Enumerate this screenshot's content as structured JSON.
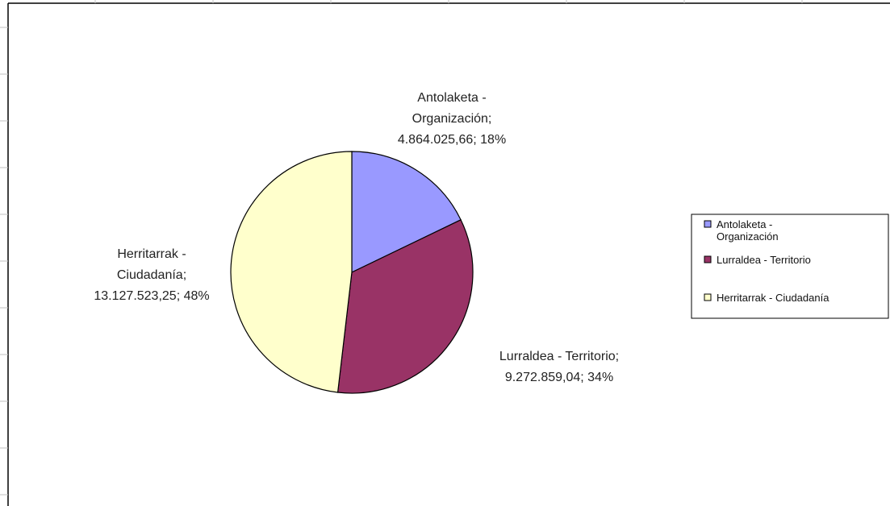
{
  "chart_data": {
    "type": "pie",
    "title": "",
    "legend_position": "right",
    "slices": [
      {
        "name": "Antolaketa - Organización",
        "value": 4864025.66,
        "percent": 18,
        "color": "#9999ff",
        "label_lines": [
          "Antolaketa -",
          "Organización;",
          "4.864.025,66; 18%"
        ],
        "legend_lines": [
          "Antolaketa -",
          "Organización"
        ]
      },
      {
        "name": "Lurraldea - Territorio",
        "value": 9272859.04,
        "percent": 34,
        "color": "#993366",
        "label_lines": [
          "Lurraldea - Territorio;",
          "9.272.859,04; 34%"
        ],
        "legend_lines": [
          "Lurraldea - Territorio"
        ]
      },
      {
        "name": "Herritarrak - Ciudadanía",
        "value": 13127523.25,
        "percent": 48,
        "color": "#ffffcc",
        "label_lines": [
          "Herritarrak -",
          "Ciudadanía;",
          "13.127.523,25; 48%"
        ],
        "legend_lines": [
          "Herritarrak - Ciudadanía"
        ]
      }
    ]
  }
}
